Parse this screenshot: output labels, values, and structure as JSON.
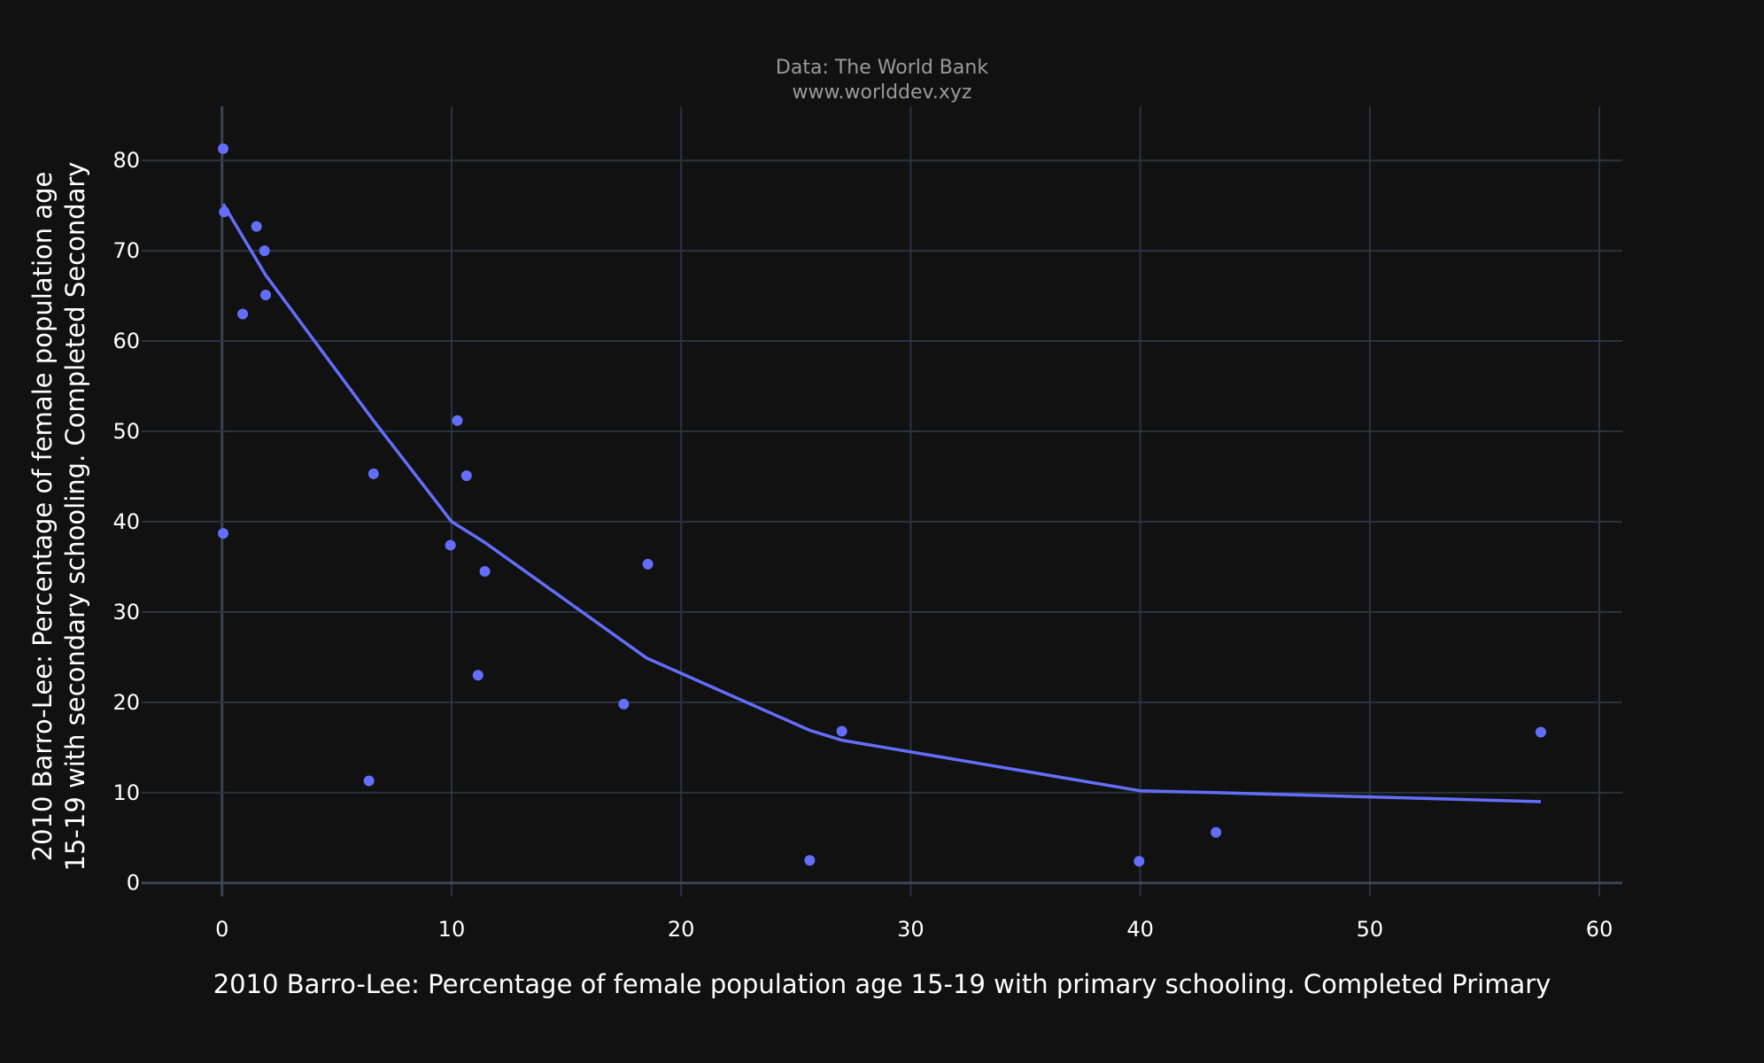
{
  "header": {
    "line1": "Data: The World Bank",
    "line2": "www.worlddev.xyz"
  },
  "colors": {
    "background": "#111111",
    "grid": "#283442",
    "zeroline": "#3a4452",
    "series": "#636efa",
    "text": "#ffffff",
    "muted_text": "#9a9a9a"
  },
  "chart_data": {
    "type": "scatter",
    "title": "",
    "xlabel": "2010 Barro-Lee: Percentage of female population age 15-19 with primary schooling. Completed Primary",
    "ylabel_lines": [
      "2010 Barro-Lee: Percentage of female population age",
      "15-19 with secondary schooling. Completed Secondary"
    ],
    "xlim": [
      -3.5,
      61
    ],
    "ylim": [
      -1.5,
      86
    ],
    "x_ticks": [
      0,
      10,
      20,
      30,
      40,
      50,
      60
    ],
    "y_ticks": [
      0,
      10,
      20,
      30,
      40,
      50,
      60,
      70,
      80
    ],
    "grid": true,
    "legend": "none",
    "series": [
      {
        "mode": "markers",
        "points": [
          {
            "x": 0.05,
            "y": 81.3
          },
          {
            "x": 0.1,
            "y": 74.3
          },
          {
            "x": 0.05,
            "y": 38.7
          },
          {
            "x": 1.5,
            "y": 72.7
          },
          {
            "x": 1.85,
            "y": 70.0
          },
          {
            "x": 0.9,
            "y": 63.0
          },
          {
            "x": 1.9,
            "y": 65.1
          },
          {
            "x": 6.6,
            "y": 45.3
          },
          {
            "x": 6.4,
            "y": 11.3
          },
          {
            "x": 10.25,
            "y": 51.2
          },
          {
            "x": 10.65,
            "y": 45.1
          },
          {
            "x": 9.95,
            "y": 37.4
          },
          {
            "x": 11.45,
            "y": 34.5
          },
          {
            "x": 11.15,
            "y": 23.0
          },
          {
            "x": 17.5,
            "y": 19.8
          },
          {
            "x": 18.55,
            "y": 35.3
          },
          {
            "x": 25.6,
            "y": 2.5
          },
          {
            "x": 27.0,
            "y": 16.8
          },
          {
            "x": 39.95,
            "y": 2.4
          },
          {
            "x": 43.3,
            "y": 5.6
          },
          {
            "x": 57.45,
            "y": 16.7
          }
        ]
      },
      {
        "mode": "lines",
        "points": [
          {
            "x": 0.05,
            "y": 75.2
          },
          {
            "x": 1.9,
            "y": 67.3
          },
          {
            "x": 6.6,
            "y": 51.2
          },
          {
            "x": 10.0,
            "y": 40.0
          },
          {
            "x": 11.45,
            "y": 37.7
          },
          {
            "x": 18.5,
            "y": 24.9
          },
          {
            "x": 25.6,
            "y": 16.9
          },
          {
            "x": 27.0,
            "y": 15.8
          },
          {
            "x": 40.0,
            "y": 10.2
          },
          {
            "x": 43.3,
            "y": 10.0
          },
          {
            "x": 57.45,
            "y": 9.0
          }
        ]
      }
    ]
  }
}
